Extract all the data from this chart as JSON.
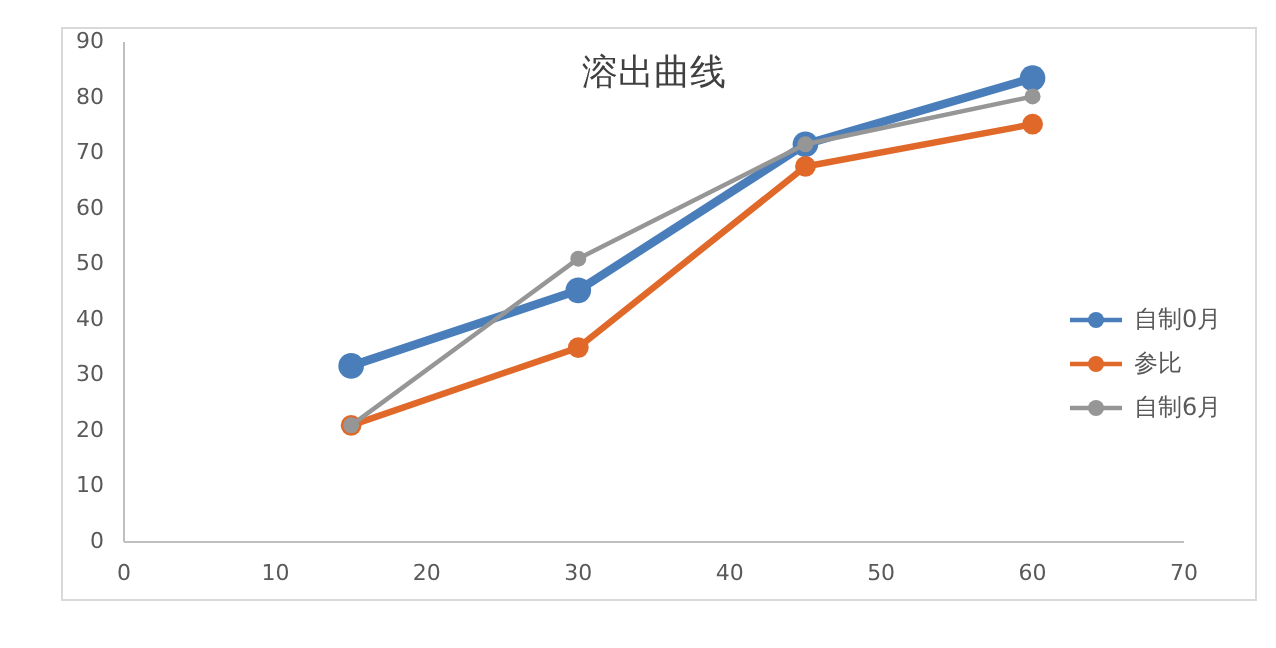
{
  "chart_data": {
    "type": "line",
    "title": "溶出曲线",
    "x": [
      15,
      30,
      45,
      60
    ],
    "series": [
      {
        "name": "自制0月",
        "color": "#4a7ebb",
        "values": [
          31.7,
          45.3,
          71.6,
          83.5
        ]
      },
      {
        "name": "参比",
        "color": "#e0692a",
        "values": [
          21,
          35,
          67.6,
          75.2
        ]
      },
      {
        "name": "自制6月",
        "color": "#969696",
        "values": [
          21,
          51,
          71.6,
          80.2
        ]
      }
    ],
    "xlim": [
      0,
      70
    ],
    "xticks": [
      0,
      10,
      20,
      30,
      40,
      50,
      60,
      70
    ],
    "ylim": [
      0,
      90
    ],
    "yticks": [
      0,
      10,
      20,
      30,
      40,
      50,
      60,
      70,
      80,
      90
    ],
    "grid": false,
    "legend": "right",
    "marker": "circle",
    "line_style": "solid"
  }
}
